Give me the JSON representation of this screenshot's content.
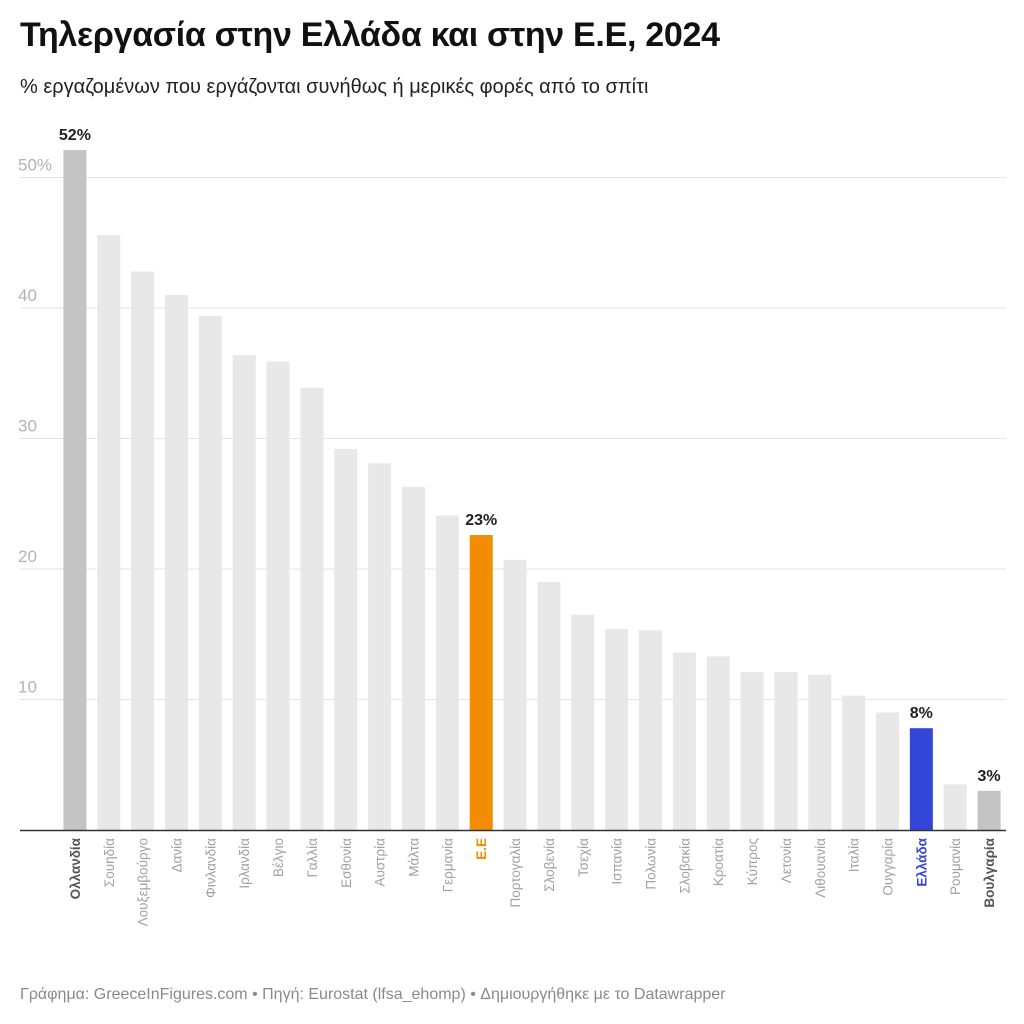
{
  "title": "Τηλεργασία στην Ελλάδα και στην Ε.Ε, 2024",
  "subtitle": "% εργαζομένων που εργάζονται συνήθως ή μερικές φορές από το σπίτι",
  "footer": "Γράφημα: GreeceInFigures.com • Πηγή: Eurostat (lfsa_ehomp) • Δημιουργήθηκε με το Datawrapper",
  "colors": {
    "default_bar": "#e8e8e8",
    "extreme_bar": "#c4c4c4",
    "eu_bar": "#f28c00",
    "greece_bar": "#3446d8",
    "grid": "#e3e3e3",
    "axis": "#333333",
    "tick_label": "#b3b3b3",
    "category_label": "#a0a0a0",
    "value_label": "#222222"
  },
  "chart_data": {
    "type": "bar",
    "title": "Τηλεργασία στην Ελλάδα και στην Ε.Ε, 2024",
    "subtitle": "% εργαζομένων που εργάζονται συνήθως ή μερικές φορές από το σπίτι",
    "xlabel": "",
    "ylabel": "",
    "ylim": [
      0,
      55
    ],
    "yticks": [
      10,
      20,
      30,
      40,
      50
    ],
    "ytick_labels": [
      "10",
      "20",
      "30",
      "40",
      "50%"
    ],
    "grid": true,
    "categories": [
      "Ολλανδία",
      "Σουηδία",
      "Λουξεμβούργο",
      "Δανία",
      "Φινλανδία",
      "Ιρλανδία",
      "Βέλγιο",
      "Γαλλία",
      "Εσθονία",
      "Αυστρία",
      "Μάλτα",
      "Γερμανία",
      "Ε.Ε",
      "Πορτογαλία",
      "Σλοβενία",
      "Τσεχία",
      "Ισπανία",
      "Πολωνία",
      "Σλοβακία",
      "Κροατία",
      "Κύπρος",
      "Λετονία",
      "Λιθουανία",
      "Ιταλία",
      "Ουγγαρία",
      "Ελλάδα",
      "Ρουμανία",
      "Βουλγαρία"
    ],
    "values": [
      52.1,
      45.6,
      42.8,
      41.0,
      39.4,
      36.4,
      35.9,
      33.9,
      29.2,
      28.1,
      26.3,
      24.1,
      22.6,
      20.7,
      19.0,
      16.5,
      15.4,
      15.3,
      13.6,
      13.3,
      12.1,
      12.1,
      11.9,
      10.3,
      9.0,
      7.8,
      3.5,
      3.0
    ],
    "bar_colors": [
      "extreme",
      "default",
      "default",
      "default",
      "default",
      "default",
      "default",
      "default",
      "default",
      "default",
      "default",
      "default",
      "eu",
      "default",
      "default",
      "default",
      "default",
      "default",
      "default",
      "default",
      "default",
      "default",
      "default",
      "default",
      "default",
      "greece",
      "default",
      "extreme"
    ],
    "data_labels": {
      "0": "52%",
      "12": "23%",
      "25": "8%",
      "27": "3%"
    },
    "bold_categories": [
      0,
      12,
      25,
      27
    ]
  }
}
